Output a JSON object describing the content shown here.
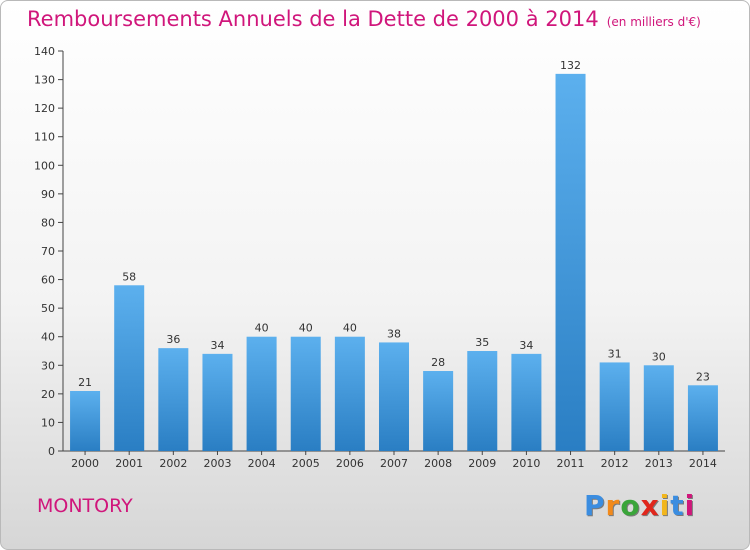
{
  "header": {
    "title": "Remboursements Annuels de la Dette de 2000 à 2014",
    "subtitle": "(en milliers d'€)"
  },
  "footer": {
    "commune": "MONTORY",
    "logo": {
      "letters": [
        "P",
        "r",
        "o",
        "x",
        "i",
        "t",
        "i"
      ],
      "colors": [
        "#3b8de0",
        "#f28a1c",
        "#3aa53a",
        "#e0261c",
        "#f2b61c",
        "#3b8de0",
        "#d0167b"
      ]
    }
  },
  "chart_data": {
    "type": "bar",
    "title": "Remboursements Annuels de la Dette de 2000 à 2014",
    "subtitle": "(en milliers d'€)",
    "categories": [
      "2000",
      "2001",
      "2002",
      "2003",
      "2004",
      "2005",
      "2006",
      "2007",
      "2008",
      "2009",
      "2010",
      "2011",
      "2012",
      "2013",
      "2014"
    ],
    "values": [
      21,
      58,
      36,
      34,
      40,
      40,
      40,
      38,
      28,
      35,
      34,
      132,
      31,
      30,
      23
    ],
    "ylim": [
      0,
      140
    ],
    "yticks": [
      0,
      10,
      20,
      30,
      40,
      50,
      60,
      70,
      80,
      90,
      100,
      110,
      120,
      130,
      140
    ],
    "grid": false,
    "bar_color": "#4aa1e2",
    "bar_color_dark": "#2a7ec3",
    "data_labels": true
  }
}
